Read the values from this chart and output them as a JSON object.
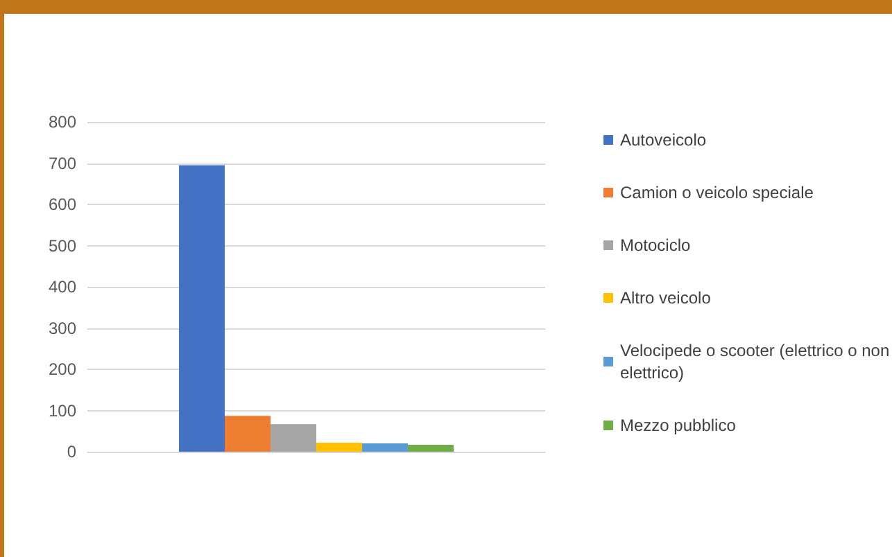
{
  "chart_data": {
    "type": "bar",
    "categories": [
      null
    ],
    "series": [
      {
        "name": "Autoveicolo",
        "color": "#4472c4",
        "values": [
          695
        ]
      },
      {
        "name": "Camion o veicolo speciale",
        "color": "#ed7d31",
        "values": [
          87
        ]
      },
      {
        "name": "Motociclo",
        "color": "#a5a5a5",
        "values": [
          67
        ]
      },
      {
        "name": "Altro veicolo",
        "color": "#ffc000",
        "values": [
          22
        ]
      },
      {
        "name": "Velocipede o scooter (elettrico o non elettrico)",
        "color": "#5b9bd5",
        "values": [
          20
        ]
      },
      {
        "name": "Mezzo pubblico",
        "color": "#70ad47",
        "values": [
          17
        ]
      }
    ],
    "ylim": [
      0,
      800
    ],
    "yticks": [
      0,
      100,
      200,
      300,
      400,
      500,
      600,
      700,
      800
    ],
    "grid": "y",
    "legend": "right"
  }
}
